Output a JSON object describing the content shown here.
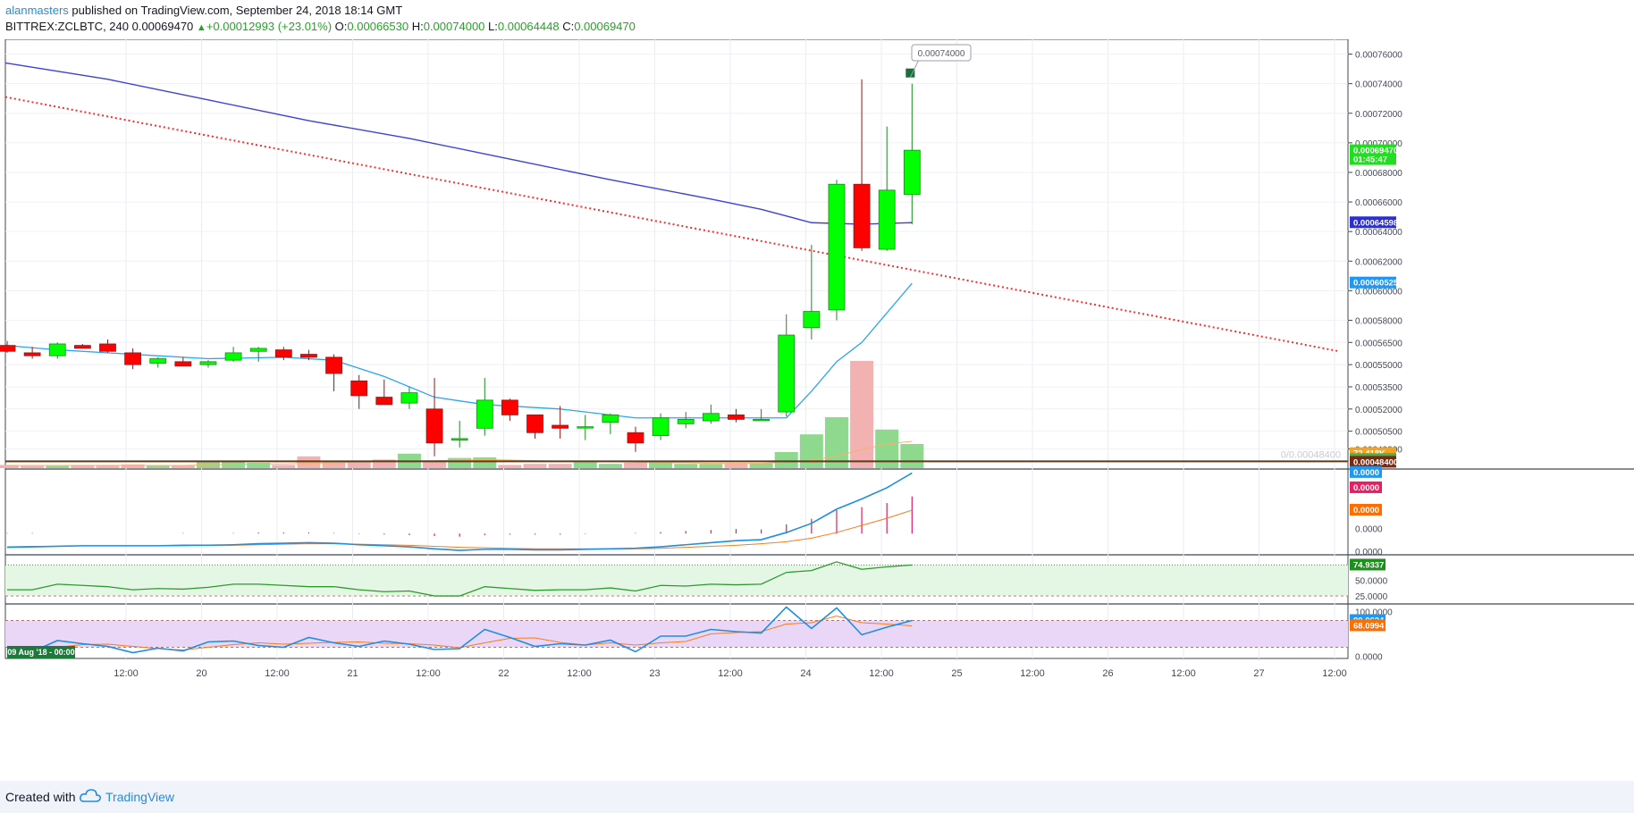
{
  "header": {
    "author": "alanmasters",
    "published_text": " published on TradingView.com, September 24, 2018 18:14 GMT",
    "symbol": "BITTREX:ZCLBTC, 240",
    "last_price": "0.00069470",
    "change": "+0.00012993 (+23.01%)",
    "open_label": "O:",
    "open": "0.00066530",
    "high_label": "H:",
    "high": "0.00074000",
    "low_label": "L:",
    "low": "0.00064448",
    "close_label": "C:",
    "close": "0.00069470"
  },
  "footer": {
    "created_label": "Created with",
    "brand": "TradingView",
    "logo_icon": "cloud-icon"
  },
  "colors": {
    "up": "#00ff00",
    "down": "#ff0000",
    "ma_long": "#3e41d9",
    "ma_short": "#2aa6f0",
    "trend": "#ff2a2a",
    "vol_up": "#8ed98e",
    "vol_down": "#f3b2b2"
  },
  "chart_data": {
    "type": "candlestick",
    "price_axis": {
      "ticks": [
        "0.00076000",
        "0.00074000",
        "0.00072000",
        "0.00070000",
        "0.00068000",
        "0.00066000",
        "0.00064000",
        "0.00062000",
        "0.00060000",
        "0.00058000",
        "0.00056500",
        "0.00055000",
        "0.00053500",
        "0.00052000",
        "0.00050500",
        "0.00049300"
      ],
      "ylim": [
        0.00048,
        0.00077
      ]
    },
    "x_axis": {
      "labels": [
        "12:00",
        "20",
        "12:00",
        "21",
        "12:00",
        "22",
        "12:00",
        "23",
        "12:00",
        "24",
        "12:00",
        "25",
        "12:00",
        "26",
        "12:00",
        "27",
        "12:00"
      ],
      "start_badge": "09 Aug '18 - 00:00"
    },
    "price_tags": [
      {
        "label": "0.00069470",
        "value": 0.0006947,
        "color": "#22dd22",
        "text_color": "#ffffff"
      },
      {
        "label": "01:45:47",
        "value": 0.0006887,
        "color": "#22dd22",
        "text_color": "#ffffff"
      },
      {
        "label": "0.00064598",
        "value": 0.00064598,
        "color": "#2c2fd2",
        "text_color": "#ffffff"
      },
      {
        "label": "0.00060525",
        "value": 0.00060525,
        "color": "#2196f3",
        "text_color": "#ffffff"
      },
      {
        "label": "72.418K",
        "value": 0.00048987,
        "color": "#f7a21b",
        "text_color": "#ffffff"
      },
      {
        "label": "61.925K",
        "value": 0.00048587,
        "color": "#4caf50",
        "text_color": "#ffffff"
      },
      {
        "label": "0.00048400",
        "value": 0.000484,
        "color": "#7b2a12",
        "text_color": "#ffffff"
      }
    ],
    "high_callout": "0.00074000",
    "h_line_label": "0/0.00048400",
    "h_line_value": 0.000484,
    "candles": [
      [
        0.000563,
        0.000566,
        0.000558,
        0.000559
      ],
      [
        0.000558,
        0.000562,
        0.000554,
        0.000556
      ],
      [
        0.000556,
        0.000565,
        0.000554,
        0.000564
      ],
      [
        0.000563,
        0.000564,
        0.000561,
        0.000561
      ],
      [
        0.000564,
        0.000567,
        0.000558,
        0.000559
      ],
      [
        0.000558,
        0.000561,
        0.000547,
        0.00055
      ],
      [
        0.000551,
        0.000555,
        0.000548,
        0.000554
      ],
      [
        0.000552,
        0.000555,
        0.000549,
        0.000549
      ],
      [
        0.00055,
        0.000553,
        0.000548,
        0.000552
      ],
      [
        0.000553,
        0.000562,
        0.000552,
        0.000558
      ],
      [
        0.000559,
        0.000562,
        0.000552,
        0.000561
      ],
      [
        0.00056,
        0.000562,
        0.000553,
        0.000555
      ],
      [
        0.000557,
        0.00056,
        0.000553,
        0.000555
      ],
      [
        0.000555,
        0.000557,
        0.000532,
        0.000544
      ],
      [
        0.000539,
        0.000543,
        0.00052,
        0.000529
      ],
      [
        0.000528,
        0.00054,
        0.000524,
        0.000523
      ],
      [
        0.000524,
        0.000535,
        0.00052,
        0.000531
      ],
      [
        0.00052,
        0.000541,
        0.000488,
        0.000497
      ],
      [
        0.000499,
        0.000512,
        0.000494,
        0.0005
      ],
      [
        0.000507,
        0.000541,
        0.000502,
        0.000526
      ],
      [
        0.000526,
        0.000527,
        0.000512,
        0.000516
      ],
      [
        0.000516,
        0.000516,
        0.0005,
        0.000504
      ],
      [
        0.000509,
        0.000522,
        0.0005,
        0.000507
      ],
      [
        0.000508,
        0.000516,
        0.000499,
        0.000508
      ],
      [
        0.000511,
        0.000517,
        0.000503,
        0.000516
      ],
      [
        0.000504,
        0.000508,
        0.000491,
        0.000497
      ],
      [
        0.000502,
        0.000517,
        0.000499,
        0.000514
      ],
      [
        0.00051,
        0.000518,
        0.000507,
        0.000513
      ],
      [
        0.000512,
        0.000523,
        0.00051,
        0.000517
      ],
      [
        0.000516,
        0.00052,
        0.000511,
        0.000513
      ],
      [
        0.000513,
        0.00052,
        0.000512,
        0.000513
      ],
      [
        0.000518,
        0.000584,
        0.000515,
        0.00057
      ],
      [
        0.000575,
        0.000631,
        0.000567,
        0.000586
      ],
      [
        0.000587,
        0.000675,
        0.00058,
        0.000672
      ],
      [
        0.000672,
        0.000743,
        0.000627,
        0.000629
      ],
      [
        0.000628,
        0.000711,
        0.000627,
        0.000668
      ],
      [
        0.000665,
        0.00074,
        0.000645,
        0.000695
      ]
    ],
    "volume": [
      0.06,
      0.04,
      0.04,
      0.06,
      0.06,
      0.07,
      0.05,
      0.05,
      0.12,
      0.12,
      0.1,
      0.06,
      0.22,
      0.14,
      0.14,
      0.16,
      0.27,
      0.13,
      0.19,
      0.2,
      0.06,
      0.08,
      0.08,
      0.11,
      0.08,
      0.1,
      0.12,
      0.08,
      0.08,
      0.09,
      0.09,
      0.3,
      0.63,
      0.95,
      2.0,
      0.72,
      0.45
    ],
    "ma_long_values": [
      [
        0,
        0.000754
      ],
      [
        4,
        0.000743
      ],
      [
        8,
        0.000729
      ],
      [
        12,
        0.000715
      ],
      [
        16,
        0.000703
      ],
      [
        20,
        0.000689
      ],
      [
        24,
        0.000675
      ],
      [
        28,
        0.000662
      ],
      [
        30,
        0.000655
      ],
      [
        32,
        0.000646
      ],
      [
        34,
        0.000645
      ],
      [
        36,
        0.000646
      ]
    ],
    "ma_short_values": [
      [
        -1,
        0.000563
      ],
      [
        2,
        0.00056
      ],
      [
        5,
        0.000557
      ],
      [
        8,
        0.000554
      ],
      [
        11,
        0.000555
      ],
      [
        13,
        0.000553
      ],
      [
        15,
        0.000542
      ],
      [
        17,
        0.000528
      ],
      [
        19,
        0.000523
      ],
      [
        22,
        0.00052
      ],
      [
        25,
        0.000514
      ],
      [
        28,
        0.000514
      ],
      [
        31,
        0.000514
      ],
      [
        32,
        0.000532
      ],
      [
        33,
        0.000552
      ],
      [
        34,
        0.000565
      ],
      [
        36,
        0.000605
      ]
    ],
    "trend_line": [
      [
        0,
        0.000731
      ],
      [
        53,
        0.000559
      ]
    ],
    "volume_ma": [
      0.05,
      0.05,
      0.05,
      0.05,
      0.05,
      0.05,
      0.05,
      0.05,
      0.06,
      0.07,
      0.08,
      0.08,
      0.09,
      0.1,
      0.11,
      0.12,
      0.14,
      0.14,
      0.15,
      0.16,
      0.15,
      0.14,
      0.13,
      0.13,
      0.12,
      0.11,
      0.1,
      0.1,
      0.09,
      0.09,
      0.09,
      0.11,
      0.15,
      0.22,
      0.35,
      0.45,
      0.5
    ],
    "macd": {
      "tags": [
        {
          "label": "0.0000",
          "value": 0.00012,
          "color": "#2196f3"
        },
        {
          "label": "0.0000",
          "value": 9e-05,
          "color": "#e91e63"
        },
        {
          "label": "0.0000",
          "value": 4.6e-05,
          "color": "#ff6d00"
        }
      ],
      "ticks": [
        {
          "label": "0.0000",
          "value": 1e-05
        },
        {
          "label": "0.0000",
          "value": -3.5e-05
        }
      ],
      "macd_line": [
        -2.7e-05,
        -2.6e-05,
        -2.5e-05,
        -2.4e-05,
        -2.4e-05,
        -2.4e-05,
        -2.4e-05,
        -2.3e-05,
        -2.3e-05,
        -2.2e-05,
        -2e-05,
        -1.9e-05,
        -1.8e-05,
        -1.9e-05,
        -2.2e-05,
        -2.4e-05,
        -2.6e-05,
        -3e-05,
        -3.3e-05,
        -3.1e-05,
        -3.1e-05,
        -3.2e-05,
        -3.2e-05,
        -3.1e-05,
        -3e-05,
        -2.9e-05,
        -2.6e-05,
        -2.2e-05,
        -1.8e-05,
        -1.4e-05,
        -1.2e-05,
        2e-06,
        2e-05,
        4.8e-05,
        6.8e-05,
        9e-05,
        0.000119
      ],
      "signal_line": [
        -2.6e-05,
        -2.5e-05,
        -2.5e-05,
        -2.4e-05,
        -2.4e-05,
        -2.4e-05,
        -2.4e-05,
        -2.4e-05,
        -2.3e-05,
        -2.3e-05,
        -2.2e-05,
        -2.1e-05,
        -2e-05,
        -2e-05,
        -2.1e-05,
        -2.2e-05,
        -2.3e-05,
        -2.5e-05,
        -2.7e-05,
        -2.8e-05,
        -2.9e-05,
        -3e-05,
        -3e-05,
        -3e-05,
        -3e-05,
        -3e-05,
        -2.9e-05,
        -2.7e-05,
        -2.5e-05,
        -2.3e-05,
        -2e-05,
        -1.6e-05,
        -9e-06,
        2e-06,
        1.6e-05,
        3e-05,
        4.6e-05
      ],
      "histogram": [
        1e-06,
        1e-06,
        0,
        0,
        0,
        0,
        0,
        1e-06,
        0,
        1e-06,
        2e-06,
        2e-06,
        2e-06,
        1e-06,
        -1e-06,
        -2e-06,
        -3e-06,
        -5e-06,
        -6e-06,
        -3e-06,
        -2e-06,
        -2e-06,
        -2e-06,
        -1e-06,
        0,
        1e-06,
        3e-06,
        5e-06,
        7e-06,
        9e-06,
        8e-06,
        1.8e-05,
        2.9e-05,
        4.6e-05,
        5.2e-05,
        6e-05,
        7.3e-05
      ]
    },
    "rsi": {
      "tag": {
        "label": "74.9337",
        "value": 74.93,
        "color": "#1e8e1e"
      },
      "ticks": [
        {
          "label": "50.0000",
          "value": 50
        },
        {
          "label": "25.0000",
          "value": 25
        }
      ],
      "band": [
        25,
        75
      ],
      "values": [
        35,
        35,
        44,
        42,
        40,
        35,
        37,
        36,
        39,
        44,
        44,
        42,
        40,
        40,
        35,
        32,
        33,
        25,
        25,
        40,
        37,
        34,
        35,
        35,
        38,
        33,
        42,
        41,
        44,
        43,
        44,
        63,
        66,
        80,
        68,
        72,
        75
      ]
    },
    "stoch": {
      "tags": [
        {
          "label": "80.0624",
          "value": 80.06,
          "color": "#2196f3"
        },
        {
          "label": "68.0994",
          "value": 68.1,
          "color": "#ff6d00"
        }
      ],
      "ticks": [
        {
          "label": "100.0000",
          "value": 100
        },
        {
          "label": "0.0000",
          "value": 0
        }
      ],
      "band": [
        20,
        80
      ],
      "k": [
        10,
        10,
        35,
        28,
        22,
        8,
        18,
        12,
        32,
        34,
        24,
        20,
        42,
        30,
        22,
        34,
        27,
        15,
        17,
        60,
        42,
        22,
        28,
        25,
        36,
        10,
        45,
        45,
        60,
        55,
        52,
        110,
        62,
        108,
        48,
        65,
        80
      ],
      "d": [
        15,
        15,
        20,
        26,
        27,
        22,
        17,
        14,
        20,
        26,
        30,
        27,
        29,
        31,
        32,
        29,
        28,
        25,
        19,
        30,
        40,
        41,
        31,
        25,
        30,
        25,
        30,
        33,
        50,
        53,
        55,
        72,
        75,
        90,
        75,
        72,
        68
      ]
    }
  }
}
